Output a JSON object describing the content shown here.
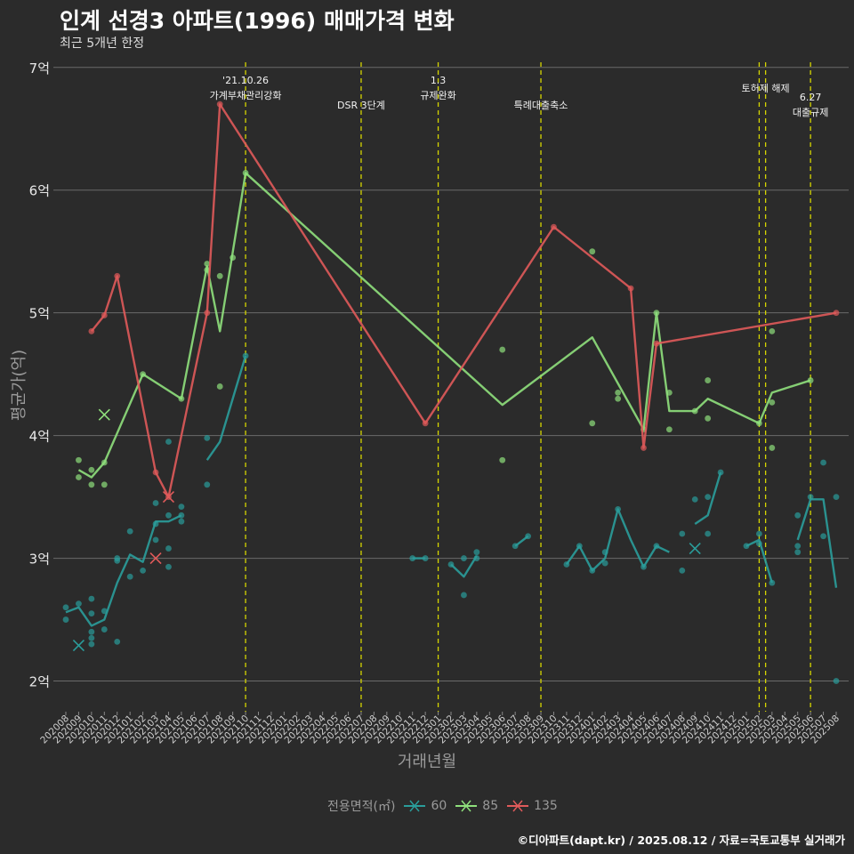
{
  "chart_data": {
    "type": "line",
    "title": "인계 선경3 아파트(1996) 매매가격 변화",
    "subtitle": "최근 5개년 한정",
    "xlabel": "거래년월",
    "ylabel": "평균가(억)",
    "caption": "©디아파트(dapt.kr) / 2025.08.12 / 자료=국토교통부 실거래가",
    "ylim": [
      1.75,
      7.1
    ],
    "yticks": [
      "2억",
      "3억",
      "4억",
      "5억",
      "6억",
      "7억"
    ],
    "ytick_values": [
      2,
      3,
      4,
      5,
      6,
      7
    ],
    "grid": true,
    "categories": [
      "202008",
      "202009",
      "202010",
      "202011",
      "202012",
      "202101",
      "202102",
      "202103",
      "202104",
      "202105",
      "202106",
      "202107",
      "202108",
      "202109",
      "202110",
      "202111",
      "202112",
      "202201",
      "202202",
      "202203",
      "202204",
      "202205",
      "202206",
      "202207",
      "202208",
      "202209",
      "202210",
      "202211",
      "202212",
      "202301",
      "202302",
      "202303",
      "202304",
      "202305",
      "202306",
      "202307",
      "202308",
      "202309",
      "202310",
      "202311",
      "202312",
      "202401",
      "202402",
      "202403",
      "202404",
      "202405",
      "202406",
      "202407",
      "202408",
      "202409",
      "202410",
      "202411",
      "202412",
      "202501",
      "202502",
      "202503",
      "202504",
      "202505",
      "202506",
      "202507",
      "202508"
    ],
    "legend_title": "전용면적(㎡)",
    "legend_position": "bottom",
    "series": [
      {
        "name": "60",
        "color": "#2a9d9b",
        "segments": [
          [
            [
              "202008",
              2.56
            ],
            [
              "202009",
              2.6
            ],
            [
              "202010",
              2.45
            ],
            [
              "202011",
              2.5
            ],
            [
              "202012",
              2.8
            ],
            [
              "202101",
              3.03
            ],
            [
              "202102",
              2.97
            ],
            [
              "202103",
              3.3
            ],
            [
              "202104",
              3.3
            ],
            [
              "202105",
              3.35
            ]
          ],
          [
            [
              "202107",
              3.8
            ],
            [
              "202108",
              3.95
            ],
            [
              "202109",
              4.3
            ],
            [
              "202110",
              4.65
            ]
          ],
          [
            [
              "202211",
              3.0
            ],
            [
              "202212",
              3.0
            ]
          ],
          [
            [
              "202302",
              2.95
            ],
            [
              "202303",
              2.85
            ],
            [
              "202304",
              3.02
            ]
          ],
          [
            [
              "202307",
              3.1
            ],
            [
              "202308",
              3.18
            ]
          ],
          [
            [
              "202311",
              2.95
            ],
            [
              "202312",
              3.1
            ],
            [
              "202401",
              2.9
            ],
            [
              "202402",
              3.0
            ],
            [
              "202403",
              3.4
            ],
            [
              "202404",
              3.15
            ],
            [
              "202405",
              2.93
            ],
            [
              "202406",
              3.1
            ],
            [
              "202407",
              3.05
            ]
          ],
          [
            [
              "202409",
              3.28
            ],
            [
              "202410",
              3.35
            ],
            [
              "202411",
              3.7
            ]
          ],
          [
            [
              "202501",
              3.1
            ],
            [
              "202502",
              3.15
            ],
            [
              "202503",
              2.8
            ]
          ],
          [
            [
              "202505",
              3.15
            ],
            [
              "202506",
              3.48
            ],
            [
              "202507",
              3.48
            ],
            [
              "202508",
              2.76
            ]
          ]
        ],
        "points": [
          [
            "202008",
            2.6
          ],
          [
            "202008",
            2.5
          ],
          [
            "202009",
            2.63
          ],
          [
            "202010",
            2.67
          ],
          [
            "202010",
            2.55
          ],
          [
            "202010",
            2.4
          ],
          [
            "202010",
            2.35
          ],
          [
            "202010",
            2.3
          ],
          [
            "202011",
            2.57
          ],
          [
            "202011",
            2.42
          ],
          [
            "202012",
            2.32
          ],
          [
            "202012",
            3.0
          ],
          [
            "202012",
            2.98
          ],
          [
            "202101",
            3.22
          ],
          [
            "202101",
            2.85
          ],
          [
            "202102",
            2.9
          ],
          [
            "202103",
            3.45
          ],
          [
            "202103",
            3.28
          ],
          [
            "202103",
            3.15
          ],
          [
            "202104",
            3.95
          ],
          [
            "202104",
            3.35
          ],
          [
            "202104",
            3.08
          ],
          [
            "202104",
            2.93
          ],
          [
            "202105",
            3.42
          ],
          [
            "202105",
            3.35
          ],
          [
            "202105",
            3.3
          ],
          [
            "202107",
            3.98
          ],
          [
            "202107",
            3.6
          ],
          [
            "202110",
            4.65
          ],
          [
            "202211",
            3.0
          ],
          [
            "202212",
            3.0
          ],
          [
            "202302",
            2.95
          ],
          [
            "202303",
            3.0
          ],
          [
            "202303",
            2.7
          ],
          [
            "202304",
            3.05
          ],
          [
            "202304",
            3.0
          ],
          [
            "202307",
            3.1
          ],
          [
            "202308",
            3.18
          ],
          [
            "202311",
            2.95
          ],
          [
            "202312",
            3.1
          ],
          [
            "202401",
            2.9
          ],
          [
            "202402",
            3.05
          ],
          [
            "202402",
            2.96
          ],
          [
            "202403",
            3.4
          ],
          [
            "202405",
            2.93
          ],
          [
            "202406",
            3.1
          ],
          [
            "202408",
            3.2
          ],
          [
            "202408",
            2.9
          ],
          [
            "202409",
            3.48
          ],
          [
            "202410",
            3.5
          ],
          [
            "202410",
            3.2
          ],
          [
            "202411",
            3.7
          ],
          [
            "202501",
            3.1
          ],
          [
            "202502",
            3.2
          ],
          [
            "202502",
            3.12
          ],
          [
            "202503",
            2.8
          ],
          [
            "202505",
            3.35
          ],
          [
            "202505",
            3.1
          ],
          [
            "202505",
            3.05
          ],
          [
            "202506",
            3.5
          ],
          [
            "202507",
            3.78
          ],
          [
            "202507",
            3.18
          ],
          [
            "202508",
            3.5
          ],
          [
            "202508",
            2.0
          ]
        ],
        "cancelled": [
          [
            "202009",
            2.29
          ],
          [
            "202409",
            3.08
          ]
        ]
      },
      {
        "name": "85",
        "color": "#8fe07c",
        "segments": [
          [
            [
              "202009",
              3.72
            ],
            [
              "202010",
              3.66
            ],
            [
              "202011",
              3.78
            ],
            [
              "202102",
              4.5
            ],
            [
              "202105",
              4.3
            ],
            [
              "202107",
              5.38
            ],
            [
              "202108",
              4.85
            ],
            [
              "202110",
              6.14
            ],
            [
              "202306",
              4.25
            ],
            [
              "202401",
              4.8
            ],
            [
              "202405",
              4.05
            ],
            [
              "202406",
              5.0
            ],
            [
              "202407",
              4.2
            ],
            [
              "202409",
              4.2
            ],
            [
              "202410",
              4.3
            ],
            [
              "202502",
              4.1
            ],
            [
              "202503",
              4.35
            ],
            [
              "202506",
              4.45
            ]
          ]
        ],
        "points": [
          [
            "202009",
            3.8
          ],
          [
            "202009",
            3.66
          ],
          [
            "202010",
            3.72
          ],
          [
            "202010",
            3.6
          ],
          [
            "202011",
            3.78
          ],
          [
            "202011",
            3.6
          ],
          [
            "202102",
            4.5
          ],
          [
            "202105",
            4.3
          ],
          [
            "202107",
            5.4
          ],
          [
            "202107",
            5.35
          ],
          [
            "202108",
            5.3
          ],
          [
            "202108",
            4.4
          ],
          [
            "202109",
            5.45
          ],
          [
            "202110",
            6.14
          ],
          [
            "202306",
            4.7
          ],
          [
            "202306",
            3.8
          ],
          [
            "202401",
            5.5
          ],
          [
            "202401",
            4.1
          ],
          [
            "202403",
            4.35
          ],
          [
            "202403",
            4.3
          ],
          [
            "202405",
            4.05
          ],
          [
            "202406",
            5.0
          ],
          [
            "202407",
            4.35
          ],
          [
            "202407",
            4.05
          ],
          [
            "202409",
            4.2
          ],
          [
            "202410",
            4.45
          ],
          [
            "202410",
            4.14
          ],
          [
            "202502",
            4.1
          ],
          [
            "202503",
            4.85
          ],
          [
            "202503",
            4.27
          ],
          [
            "202503",
            3.9
          ],
          [
            "202506",
            4.45
          ]
        ],
        "cancelled": [
          [
            "202011",
            4.17
          ]
        ]
      },
      {
        "name": "135",
        "color": "#e05a5a",
        "segments": [
          [
            [
              "202010",
              4.85
            ],
            [
              "202011",
              4.98
            ],
            [
              "202012",
              5.3
            ],
            [
              "202103",
              3.7
            ],
            [
              "202104",
              3.5
            ],
            [
              "202107",
              5.0
            ],
            [
              "202108",
              6.7
            ],
            [
              "202212",
              4.1
            ],
            [
              "202310",
              5.7
            ],
            [
              "202404",
              5.2
            ],
            [
              "202405",
              3.9
            ],
            [
              "202406",
              4.75
            ],
            [
              "202508",
              5.0
            ]
          ]
        ],
        "points": [
          [
            "202010",
            4.85
          ],
          [
            "202011",
            4.98
          ],
          [
            "202012",
            5.3
          ],
          [
            "202103",
            3.7
          ],
          [
            "202104",
            3.5
          ],
          [
            "202107",
            5.0
          ],
          [
            "202108",
            6.7
          ],
          [
            "202212",
            4.1
          ],
          [
            "202310",
            5.7
          ],
          [
            "202404",
            5.2
          ],
          [
            "202405",
            3.9
          ],
          [
            "202406",
            4.75
          ],
          [
            "202508",
            5.0
          ]
        ],
        "cancelled": [
          [
            "202103",
            3.0
          ],
          [
            "202104",
            3.5
          ]
        ]
      }
    ],
    "events": [
      {
        "x": "202110",
        "offset": 0.0,
        "lines": [
          "'21.10.26",
          "가계부채관리강화"
        ]
      },
      {
        "x": "202207",
        "offset": 0.0,
        "lines": [
          "DSR 3단계"
        ]
      },
      {
        "x": "202301",
        "offset": 0.0,
        "lines": [
          "1.3",
          "규제완화"
        ]
      },
      {
        "x": "202309",
        "offset": 0.0,
        "lines": [
          "특례대출축소"
        ]
      },
      {
        "x": "202502",
        "offset": 0.0,
        "lines": []
      },
      {
        "x": "202503",
        "offset": -0.5,
        "lines": [
          "토허제 해제"
        ]
      },
      {
        "x": "202506",
        "offset": 0.0,
        "lines": [
          "6.27",
          "대출규제"
        ]
      }
    ]
  }
}
